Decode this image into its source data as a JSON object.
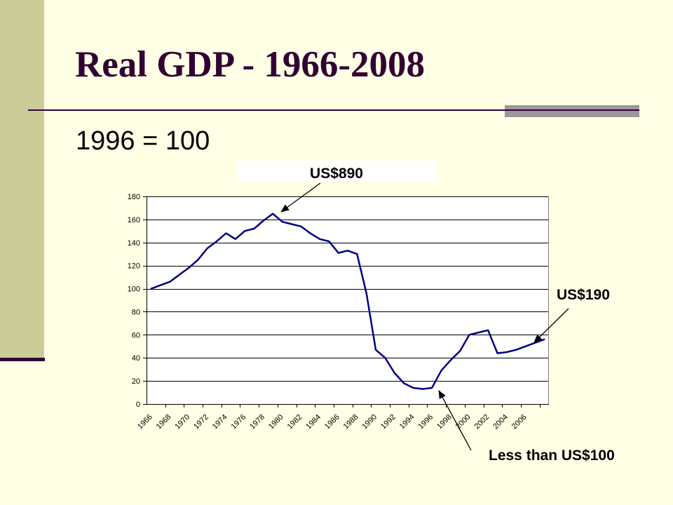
{
  "slide": {
    "title": "Real GDP - 1966-2008",
    "subtitle": "1996 = 100"
  },
  "colors": {
    "background": "#FFFFE5",
    "side_band": "#CCCC99",
    "accent": "#330033",
    "rule_block": "#999999",
    "annotation_box": "#FFFFFF",
    "plot_background": "#FFFFFF",
    "gridline": "#000000",
    "series_line": "#000080"
  },
  "chart_data": {
    "type": "line",
    "x": [
      1966,
      1967,
      1968,
      1969,
      1970,
      1971,
      1972,
      1973,
      1974,
      1975,
      1976,
      1977,
      1978,
      1979,
      1980,
      1981,
      1982,
      1983,
      1984,
      1985,
      1986,
      1987,
      1988,
      1989,
      1990,
      1991,
      1992,
      1993,
      1994,
      1995,
      1996,
      1997,
      1998,
      1999,
      2000,
      2001,
      2002,
      2003,
      2004,
      2005,
      2006,
      2007,
      2008
    ],
    "x_tick_labels": [
      "1966",
      "1968",
      "1970",
      "1972",
      "1974",
      "1976",
      "1978",
      "1980",
      "1982",
      "1984",
      "1986",
      "1988",
      "1990",
      "1992",
      "1994",
      "1996",
      "1998",
      "2000",
      "2002",
      "2004",
      "2006"
    ],
    "series": [
      {
        "values": [
          100,
          103,
          106,
          112,
          118,
          125,
          135,
          141,
          148,
          143,
          150,
          152,
          159,
          165,
          158,
          156,
          154,
          148,
          143,
          141,
          131,
          133,
          130,
          96,
          47,
          40,
          27,
          18,
          14,
          13,
          14,
          29,
          38,
          46,
          60,
          62,
          64,
          44,
          45,
          47,
          50,
          53,
          56
        ]
      }
    ],
    "ylim": [
      0,
      180
    ],
    "y_ticks": [
      0,
      20,
      40,
      60,
      80,
      100,
      120,
      140,
      160,
      180
    ],
    "grid": true,
    "legend": "none",
    "annotations": [
      "US$890",
      "US$190",
      "Less than US$100"
    ]
  }
}
